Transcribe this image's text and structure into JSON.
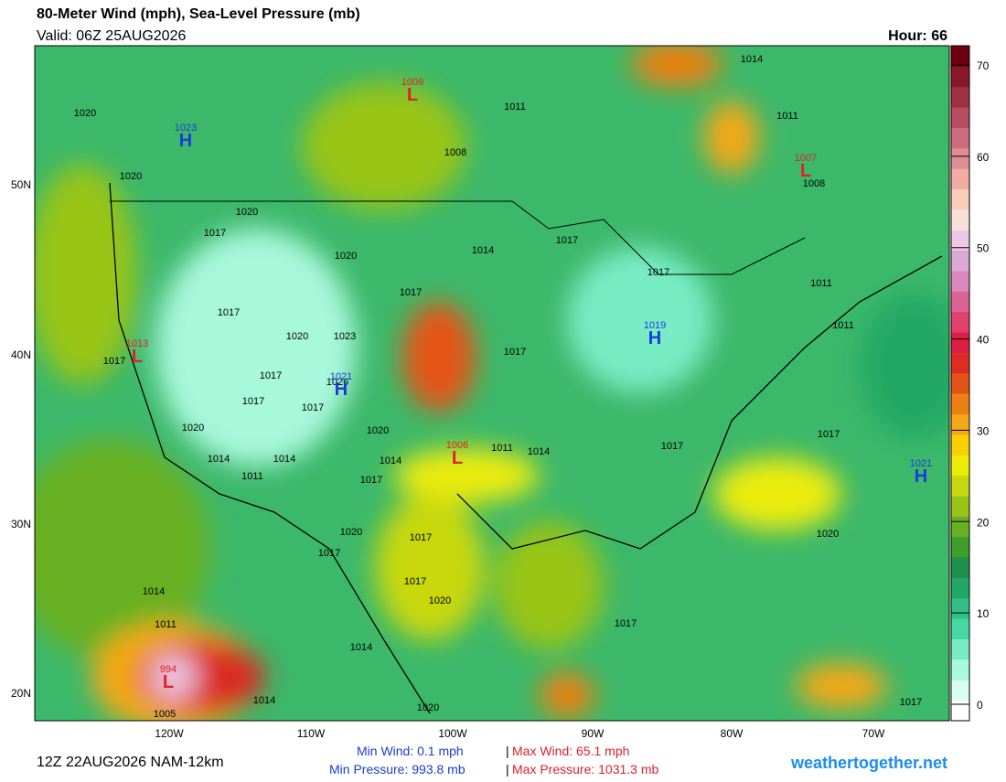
{
  "header": {
    "title": "80-Meter Wind (mph), Sea-Level Pressure (mb)",
    "valid": "Valid: 06Z 25AUG2026",
    "hour": "Hour: 66"
  },
  "axes": {
    "lat_labels": [
      "50N",
      "40N",
      "30N",
      "20N"
    ],
    "lon_labels": [
      "120W",
      "110W",
      "100W",
      "90W",
      "80W",
      "70W"
    ]
  },
  "colorbar": {
    "ticks": [
      0,
      10,
      20,
      30,
      40,
      50,
      60,
      70
    ],
    "lim": [
      -1.8,
      72.1
    ],
    "colors": [
      "#ffffff",
      "#d8fff0",
      "#a8f8dc",
      "#78ecc4",
      "#48d8a4",
      "#30c084",
      "#22a864",
      "#1c904c",
      "#3c9c2c",
      "#68b020",
      "#98c418",
      "#c8d810",
      "#ecec08",
      "#f8d000",
      "#f4a818",
      "#ec8010",
      "#e45418",
      "#dc2c24",
      "#dc2044",
      "#e0406c",
      "#dc6494",
      "#d888bc",
      "#dca8d4",
      "#ecc8e4",
      "#f8e0d8",
      "#f8ccb8",
      "#f0aca4",
      "#e08c94",
      "#cc6c7c",
      "#b84c60",
      "#a03044",
      "#881828",
      "#6c0010"
    ]
  },
  "isobars": [
    "1014",
    "1020",
    "1011",
    "1011",
    "1008",
    "1020",
    "1008",
    "1020",
    "1017",
    "1014",
    "1020",
    "1017",
    "1017",
    "1017",
    "1011",
    "1017",
    "1020",
    "1023",
    "1011",
    "1017",
    "1017",
    "1017",
    "1026",
    "1017",
    "1017",
    "1020",
    "1020",
    "1017",
    "1014",
    "1014",
    "1014",
    "1011",
    "1014",
    "1017",
    "1011",
    "1017",
    "1020",
    "1017",
    "1020",
    "1017",
    "1017",
    "1020",
    "1014",
    "1011",
    "1017",
    "1014",
    "1014",
    "1005",
    "1020",
    "1017"
  ],
  "centers": [
    {
      "letter": "H",
      "value": "1023"
    },
    {
      "letter": "L",
      "value": "1009"
    },
    {
      "letter": "L",
      "value": "1007"
    },
    {
      "letter": "L",
      "value": "1013"
    },
    {
      "letter": "H",
      "value": "1019"
    },
    {
      "letter": "H",
      "value": "1021"
    },
    {
      "letter": "L",
      "value": "1006"
    },
    {
      "letter": "H",
      "value": "1021"
    },
    {
      "letter": "L",
      "value": "994"
    }
  ],
  "footer": {
    "run": "12Z 22AUG2026 NAM-12km",
    "min_wind": "Min Wind:   0.1 mph",
    "sep1": "|",
    "max_wind": "Max Wind:  65.1 mph",
    "min_pressure": "Min Pressure: 993.8 mb",
    "sep2": "|",
    "max_pressure": "Max Pressure: 1031.3 mb",
    "site": "weathertogether.net"
  }
}
